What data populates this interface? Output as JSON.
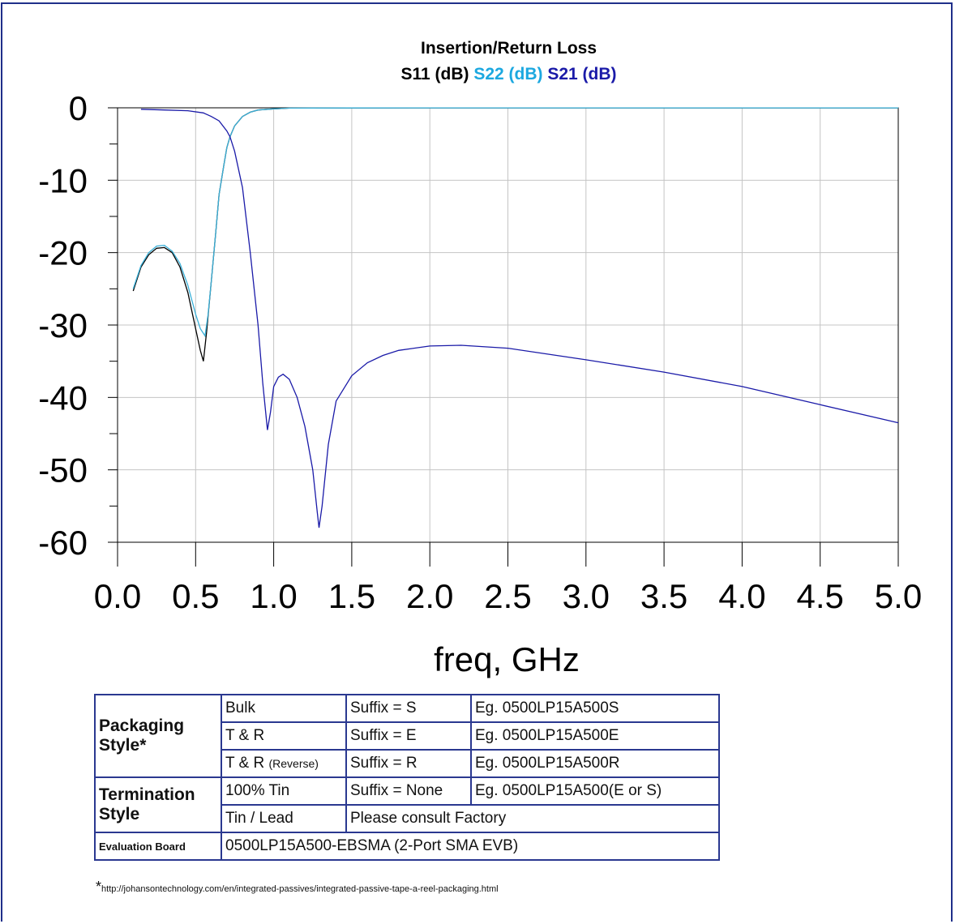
{
  "chart_data": {
    "type": "line",
    "title": "Insertion/Return Loss",
    "subtitle": [
      {
        "text": "S11 (dB)",
        "color": "#000000"
      },
      {
        "text": "S22 (dB)",
        "color": "#1ca8e0"
      },
      {
        "text": "S21 (dB)",
        "color": "#1a1aa8"
      }
    ],
    "xlabel": "freq, GHz",
    "ylabel": "",
    "xlim": [
      0.0,
      5.0
    ],
    "ylim": [
      -60,
      0
    ],
    "xticks": [
      "0.0",
      "0.5",
      "1.0",
      "1.5",
      "2.0",
      "2.5",
      "3.0",
      "3.5",
      "4.0",
      "4.5",
      "5.0"
    ],
    "yticks": [
      "0",
      "-10",
      "-20",
      "-30",
      "-40",
      "-50",
      "-60"
    ],
    "grid": true,
    "series": [
      {
        "name": "S11 (dB)",
        "color": "#000000",
        "x": [
          0.1,
          0.15,
          0.2,
          0.25,
          0.3,
          0.35,
          0.4,
          0.45,
          0.5,
          0.53,
          0.55,
          0.57,
          0.6,
          0.63,
          0.65,
          0.68,
          0.7,
          0.72,
          0.75,
          0.8,
          0.85,
          0.9,
          1.0,
          1.05,
          1.1,
          1.5,
          2.0,
          3.0,
          4.0,
          5.0
        ],
        "y": [
          -25.3,
          -22.0,
          -20.3,
          -19.4,
          -19.3,
          -20.0,
          -22.0,
          -25.5,
          -30.5,
          -33.5,
          -35.0,
          -31.0,
          -24.0,
          -17.0,
          -12.0,
          -8.0,
          -5.5,
          -4.0,
          -2.5,
          -1.2,
          -0.6,
          -0.3,
          -0.15,
          -0.1,
          -0.05,
          -0.02,
          -0.01,
          -0.01,
          -0.01,
          -0.01
        ]
      },
      {
        "name": "S22 (dB)",
        "color": "#3ab0d8",
        "x": [
          0.1,
          0.15,
          0.2,
          0.25,
          0.3,
          0.35,
          0.4,
          0.45,
          0.5,
          0.53,
          0.56,
          0.58,
          0.6,
          0.63,
          0.65,
          0.68,
          0.7,
          0.72,
          0.75,
          0.8,
          0.85,
          0.9,
          1.0,
          1.05,
          1.1,
          1.5,
          2.0,
          3.0,
          4.0,
          5.0
        ],
        "y": [
          -25.0,
          -21.8,
          -20.0,
          -19.1,
          -19.0,
          -19.8,
          -21.5,
          -24.5,
          -28.5,
          -30.5,
          -31.5,
          -28.5,
          -24.0,
          -17.0,
          -12.0,
          -8.0,
          -5.5,
          -4.0,
          -2.5,
          -1.2,
          -0.6,
          -0.3,
          -0.15,
          -0.1,
          -0.05,
          -0.02,
          -0.01,
          -0.01,
          -0.01,
          -0.01
        ]
      },
      {
        "name": "S21 (dB)",
        "color": "#1a1aa8",
        "x": [
          0.15,
          0.3,
          0.45,
          0.55,
          0.6,
          0.65,
          0.7,
          0.72,
          0.75,
          0.8,
          0.85,
          0.9,
          0.93,
          0.96,
          0.98,
          1.0,
          1.03,
          1.06,
          1.1,
          1.15,
          1.2,
          1.25,
          1.28,
          1.29,
          1.31,
          1.35,
          1.4,
          1.5,
          1.6,
          1.7,
          1.8,
          2.0,
          2.2,
          2.5,
          3.0,
          3.5,
          4.0,
          4.5,
          5.0
        ],
        "y": [
          -0.2,
          -0.3,
          -0.4,
          -0.7,
          -1.2,
          -1.8,
          -3.2,
          -4.0,
          -6.0,
          -11.0,
          -20.0,
          -30.0,
          -38.0,
          -44.5,
          -42.0,
          -38.5,
          -37.2,
          -36.8,
          -37.5,
          -40.0,
          -44.0,
          -50.0,
          -56.0,
          -58.0,
          -55.0,
          -46.5,
          -40.5,
          -37.0,
          -35.2,
          -34.2,
          -33.5,
          -32.9,
          -32.8,
          -33.2,
          -34.8,
          -36.5,
          -38.5,
          -41.0,
          -43.5
        ]
      }
    ]
  },
  "table": {
    "packaging_label": "Packaging Style*",
    "packaging_rows": [
      {
        "type": "Bulk",
        "type_note": "",
        "suffix": "Suffix = S",
        "example": "Eg. 0500LP15A500S"
      },
      {
        "type": "T & R",
        "type_note": "",
        "suffix": "Suffix = E",
        "example": "Eg. 0500LP15A500E"
      },
      {
        "type": "T & R",
        "type_note": "(Reverse)",
        "suffix": "Suffix = R",
        "example": "Eg. 0500LP15A500R"
      }
    ],
    "termination_label": "Termination Style",
    "termination_rows": [
      {
        "type": "100% Tin",
        "suffix": "Suffix = None",
        "example": "Eg. 0500LP15A500(E or S)"
      },
      {
        "type": "Tin / Lead",
        "note": "Please consult Factory"
      }
    ],
    "eval_label": "Evaluation Board",
    "eval_value": "0500LP15A500-EBSMA (2-Port SMA EVB)"
  },
  "footnote": {
    "star": "*",
    "url": "http://johansontechnology.com/en/integrated-passives/integrated-passive-tape-a-reel-packaging.html"
  }
}
